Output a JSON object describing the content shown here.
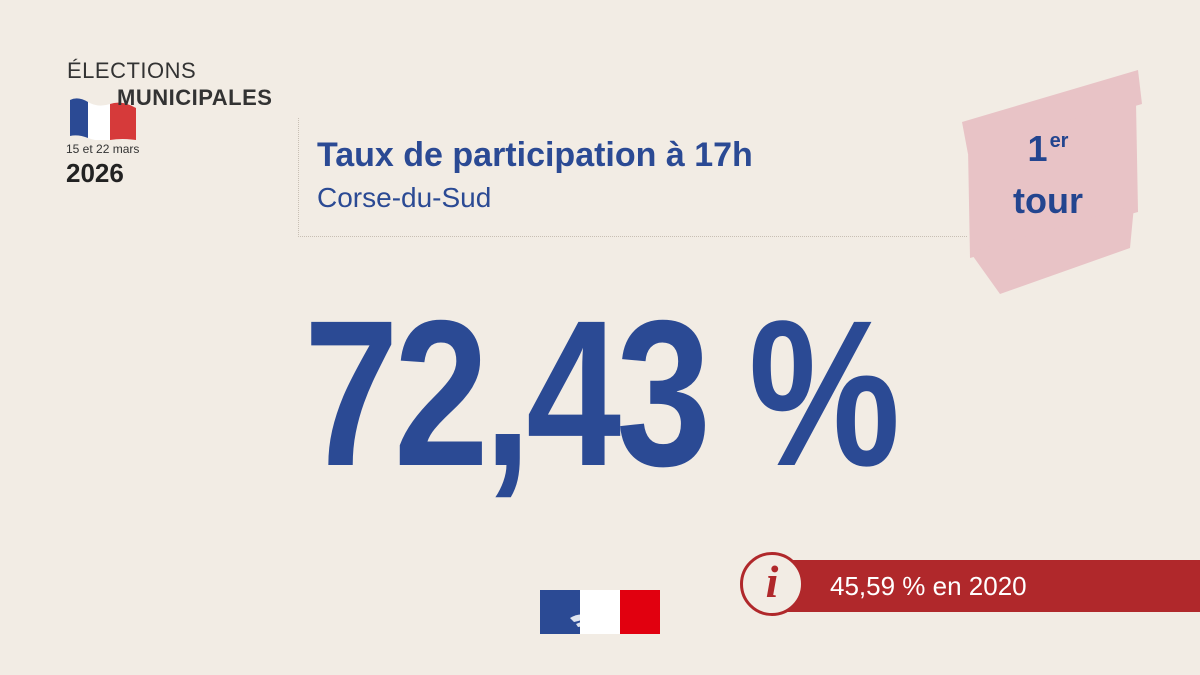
{
  "logo": {
    "line1": "ÉLECTIONS",
    "line2": "MUNICIPALES",
    "dates": "15 et 22 mars",
    "year": "2026",
    "flag_colors": [
      "#2b4a94",
      "#ffffff",
      "#d63a3a"
    ]
  },
  "header": {
    "title": "Taux de participation à 17h",
    "subtitle": "Corse-du-Sud"
  },
  "tour_badge": {
    "number": "1",
    "suffix": "er",
    "word": "tour",
    "color": "#e8c3c6"
  },
  "main_value": "72,43 %",
  "previous": {
    "icon": "info-icon",
    "glyph": "i",
    "text": "45,59 % en 2020",
    "color": "#b0282b"
  },
  "colors": {
    "background": "#f2ece4",
    "accent_blue": "#2b4a94",
    "accent_red": "#b0282b"
  }
}
